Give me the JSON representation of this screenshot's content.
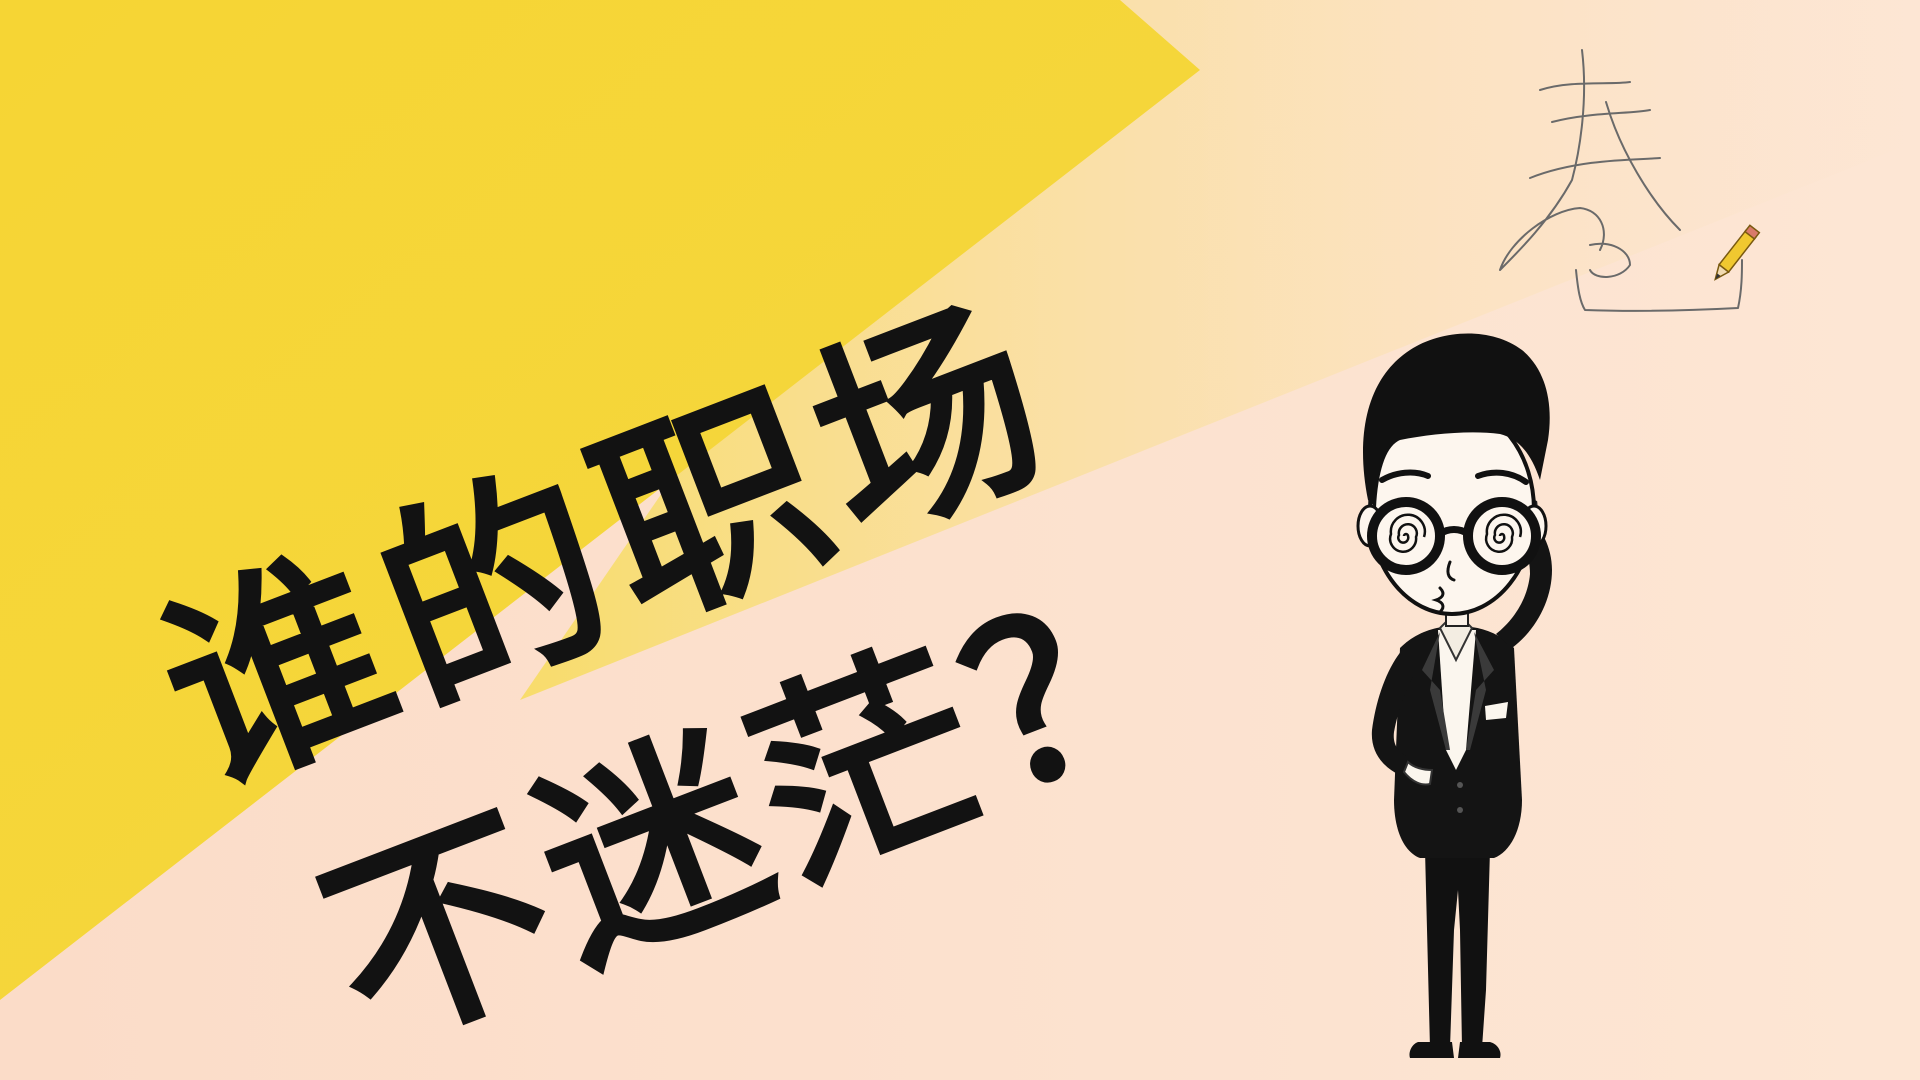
{
  "headline": {
    "line1": "谁的职场",
    "line2": "不迷茫？"
  },
  "signature_text": "春",
  "colors": {
    "yellow": "#f5d53a",
    "peach": "#fbe0cc",
    "ink": "#121212",
    "pencil_yellow": "#f0c830"
  }
}
